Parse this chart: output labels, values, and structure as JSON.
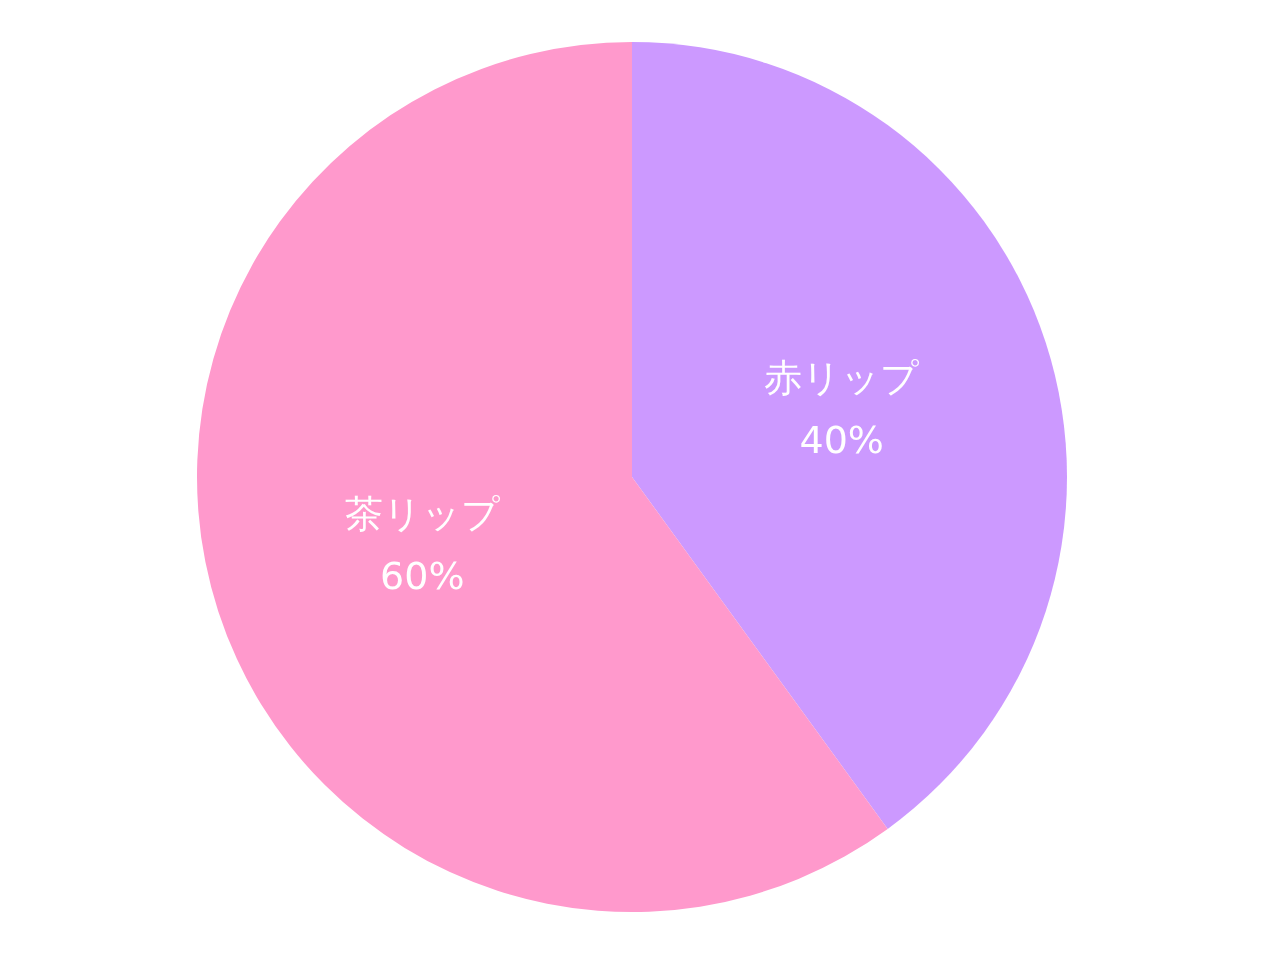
{
  "chart_data": {
    "type": "pie",
    "categories": [
      "赤リップ",
      "茶リップ"
    ],
    "values": [
      40,
      60
    ],
    "value_labels": [
      "40%",
      "60%"
    ],
    "colors": [
      "#cc99ff",
      "#ff99cc"
    ],
    "legend": false
  }
}
